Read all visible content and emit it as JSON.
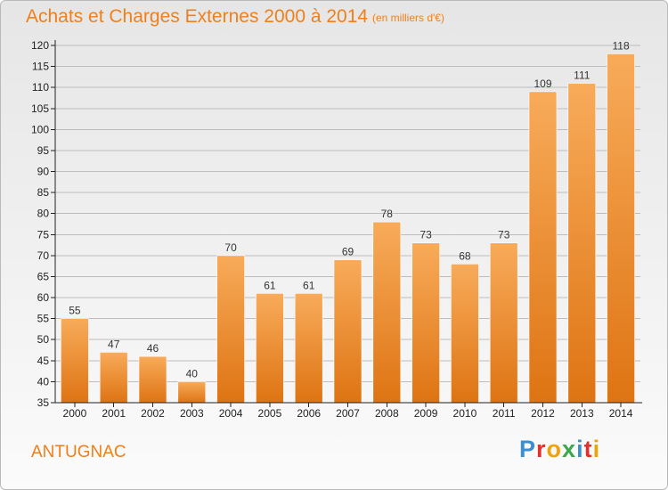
{
  "title": "Achats et Charges Externes 2000 à 2014",
  "subtitle": "(en milliers d'€)",
  "commune": "ANTUGNAC",
  "logo": {
    "text": "Proxiti",
    "letter_colors": [
      "#3b8fd1",
      "#e2302e",
      "#f0a20a",
      "#3aa84a",
      "#3b8fd1",
      "#e2302e",
      "#f0a20a"
    ]
  },
  "colors": {
    "bar_top": "#f8ab5a",
    "bar_bottom": "#de7413",
    "title": "#f07f1a",
    "axis": "#222222",
    "grid": "#bdbdbd"
  },
  "chart_data": {
    "type": "bar",
    "categories": [
      "2000",
      "2001",
      "2002",
      "2003",
      "2004",
      "2005",
      "2006",
      "2007",
      "2008",
      "2009",
      "2010",
      "2011",
      "2012",
      "2013",
      "2014"
    ],
    "values": [
      55,
      47,
      46,
      40,
      70,
      61,
      61,
      69,
      78,
      73,
      68,
      73,
      109,
      111,
      118
    ],
    "ylim": [
      35,
      120
    ],
    "yticks": [
      35,
      40,
      45,
      50,
      55,
      60,
      65,
      70,
      75,
      80,
      85,
      90,
      95,
      100,
      105,
      110,
      115,
      120
    ],
    "grid": true,
    "data_labels": true
  }
}
